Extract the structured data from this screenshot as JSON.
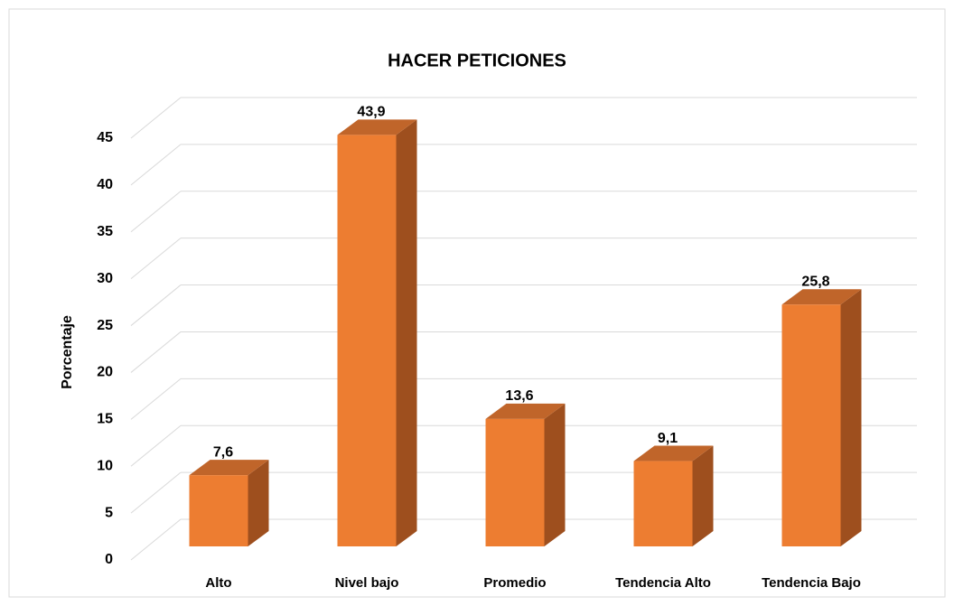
{
  "chart_data": {
    "type": "bar3d",
    "title": "HACER PETICIONES",
    "y_label": "Porcentaje",
    "categories": [
      "Alto",
      "Nivel bajo",
      "Promedio",
      "Tendencia Alto",
      "Tendencia Bajo"
    ],
    "values": [
      7.6,
      43.9,
      13.6,
      9.1,
      25.8
    ],
    "value_labels": [
      "7,6",
      "43,9",
      "13,6",
      "9,1",
      "25,8"
    ],
    "color": "#ED7D31",
    "ylim": [
      0,
      45
    ],
    "yticks": [
      0,
      5,
      10,
      15,
      20,
      25,
      30,
      35,
      40,
      45
    ],
    "grid": true
  }
}
